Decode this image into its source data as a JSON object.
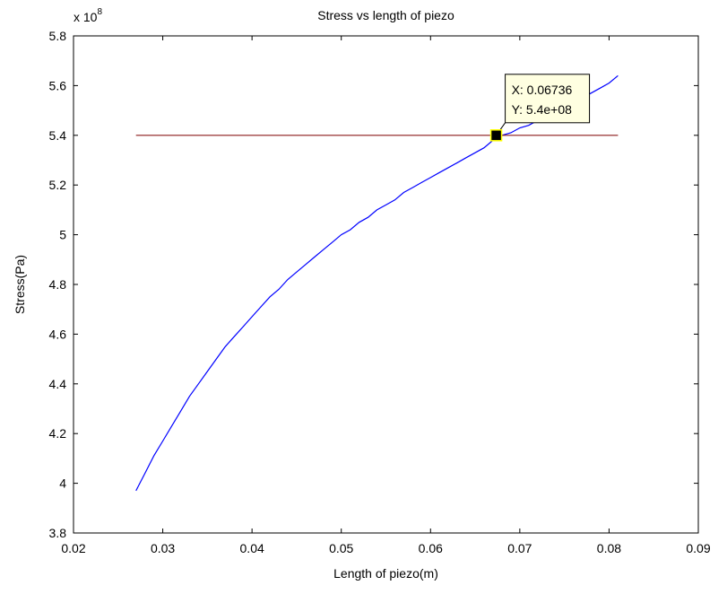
{
  "chart_data": {
    "type": "line",
    "title": "Stress vs length of piezo",
    "xlabel": "Length of piezo(m)",
    "ylabel": "Stress(Pa)",
    "y_exponent_label": "x 10",
    "y_exponent_power": "8",
    "xlim": [
      0.02,
      0.09
    ],
    "ylim": [
      3.8,
      5.8
    ],
    "x_ticks": [
      0.02,
      0.03,
      0.04,
      0.05,
      0.06,
      0.07,
      0.08,
      0.09
    ],
    "x_tick_labels": [
      "0.02",
      "0.03",
      "0.04",
      "0.05",
      "0.06",
      "0.07",
      "0.08",
      "0.09"
    ],
    "y_ticks": [
      3.8,
      4.0,
      4.2,
      4.4,
      4.6,
      4.8,
      5.0,
      5.2,
      5.4,
      5.6,
      5.8
    ],
    "y_tick_labels": [
      "3.8",
      "4",
      "4.2",
      "4.4",
      "4.6",
      "4.8",
      "5",
      "5.2",
      "5.4",
      "5.6",
      "5.8"
    ],
    "grid": false,
    "series": [
      {
        "color": "#0000ff",
        "x": [
          0.027,
          0.028,
          0.029,
          0.03,
          0.031,
          0.032,
          0.033,
          0.034,
          0.035,
          0.036,
          0.037,
          0.038,
          0.039,
          0.04,
          0.041,
          0.042,
          0.043,
          0.044,
          0.045,
          0.046,
          0.047,
          0.048,
          0.049,
          0.05,
          0.051,
          0.052,
          0.053,
          0.054,
          0.055,
          0.056,
          0.057,
          0.058,
          0.059,
          0.06,
          0.061,
          0.062,
          0.063,
          0.064,
          0.065,
          0.066,
          0.067,
          0.068,
          0.069,
          0.07,
          0.071,
          0.072,
          0.073,
          0.074,
          0.075,
          0.076,
          0.077,
          0.078,
          0.079,
          0.08,
          0.081
        ],
        "y": [
          3.97,
          4.04,
          4.11,
          4.17,
          4.23,
          4.29,
          4.35,
          4.4,
          4.45,
          4.5,
          4.55,
          4.59,
          4.63,
          4.67,
          4.71,
          4.75,
          4.78,
          4.82,
          4.85,
          4.88,
          4.91,
          4.94,
          4.97,
          5.0,
          5.02,
          5.05,
          5.07,
          5.1,
          5.12,
          5.14,
          5.17,
          5.19,
          5.21,
          5.23,
          5.25,
          5.27,
          5.29,
          5.31,
          5.33,
          5.35,
          5.38,
          5.4,
          5.41,
          5.43,
          5.44,
          5.46,
          5.48,
          5.49,
          5.51,
          5.53,
          5.55,
          5.57,
          5.59,
          5.61,
          5.64
        ]
      },
      {
        "color": "#8b1a1a",
        "x": [
          0.027,
          0.081
        ],
        "y": [
          5.4,
          5.4
        ]
      }
    ],
    "datatip": {
      "x": 0.06736,
      "y": 5.4,
      "line1": "X: 0.06736",
      "line2": "Y: 5.4e+08"
    }
  }
}
